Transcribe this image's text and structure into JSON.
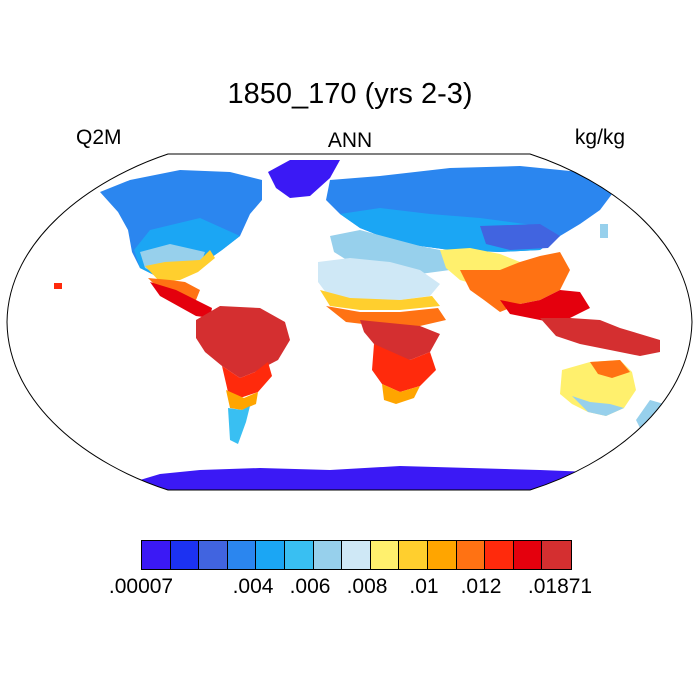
{
  "title": "1850_170 (yrs 2-3)",
  "left_label": "Q2M",
  "center_label": "ANN",
  "right_label": "kg/kg",
  "colorbar": {
    "colors": [
      "#3b19f5",
      "#1c32f2",
      "#4164e0",
      "#2b86ef",
      "#1ba6f4",
      "#39bff2",
      "#97d0ec",
      "#cfe8f6",
      "#fff06d",
      "#ffcf2e",
      "#ffa500",
      "#ff7213",
      "#ff2a0c",
      "#e4000d",
      "#d42f30"
    ],
    "labels": [
      ".00007",
      ".004",
      ".006",
      ".008",
      ".01",
      ".012",
      ".01871"
    ]
  },
  "map": {
    "projection": "Robinson",
    "variable": "Q2M",
    "coast_color": "#000000"
  }
}
